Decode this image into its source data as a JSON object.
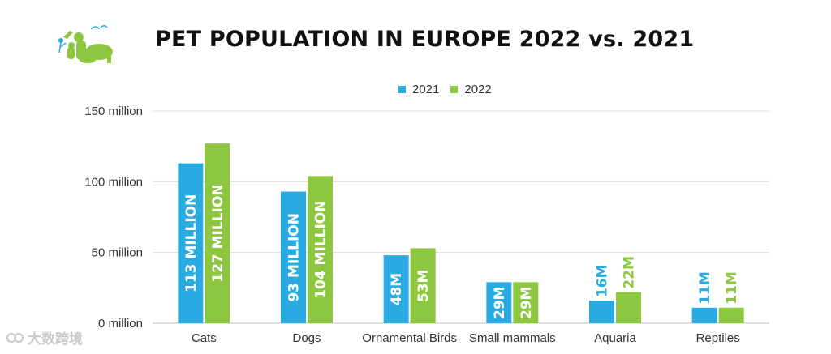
{
  "title": "PET POPULATION IN EUROPE 2022 vs. 2021",
  "watermark": "大数跨境",
  "colors": {
    "series_2021": "#29abe2",
    "series_2022": "#8dc63f",
    "logo": "#8dc63f",
    "grid": "#dddddd"
  },
  "chart_data": {
    "type": "bar",
    "title": "PET POPULATION IN EUROPE 2022 vs. 2021",
    "categories": [
      "Cats",
      "Dogs",
      "Ornamental Birds",
      "Small mammals",
      "Aquaria",
      "Reptiles"
    ],
    "series": [
      {
        "name": "2021",
        "values": [
          113,
          93,
          48,
          29,
          16,
          11
        ],
        "labels": [
          "113 MILLION",
          "93 MILLION",
          "48M",
          "29M",
          "16M",
          "11M"
        ]
      },
      {
        "name": "2022",
        "values": [
          127,
          104,
          53,
          29,
          22,
          11
        ],
        "labels": [
          "127 MILLION",
          "104 MILLION",
          "53M",
          "29M",
          "22M",
          "11M"
        ]
      }
    ],
    "y_unit": "million",
    "ylim": [
      0,
      150
    ],
    "yticks": [
      0,
      50,
      100,
      150
    ],
    "ytick_labels": [
      "0 million",
      "50 million",
      "100 million",
      "150 million"
    ],
    "legend_position": "top-center",
    "grid": true
  }
}
